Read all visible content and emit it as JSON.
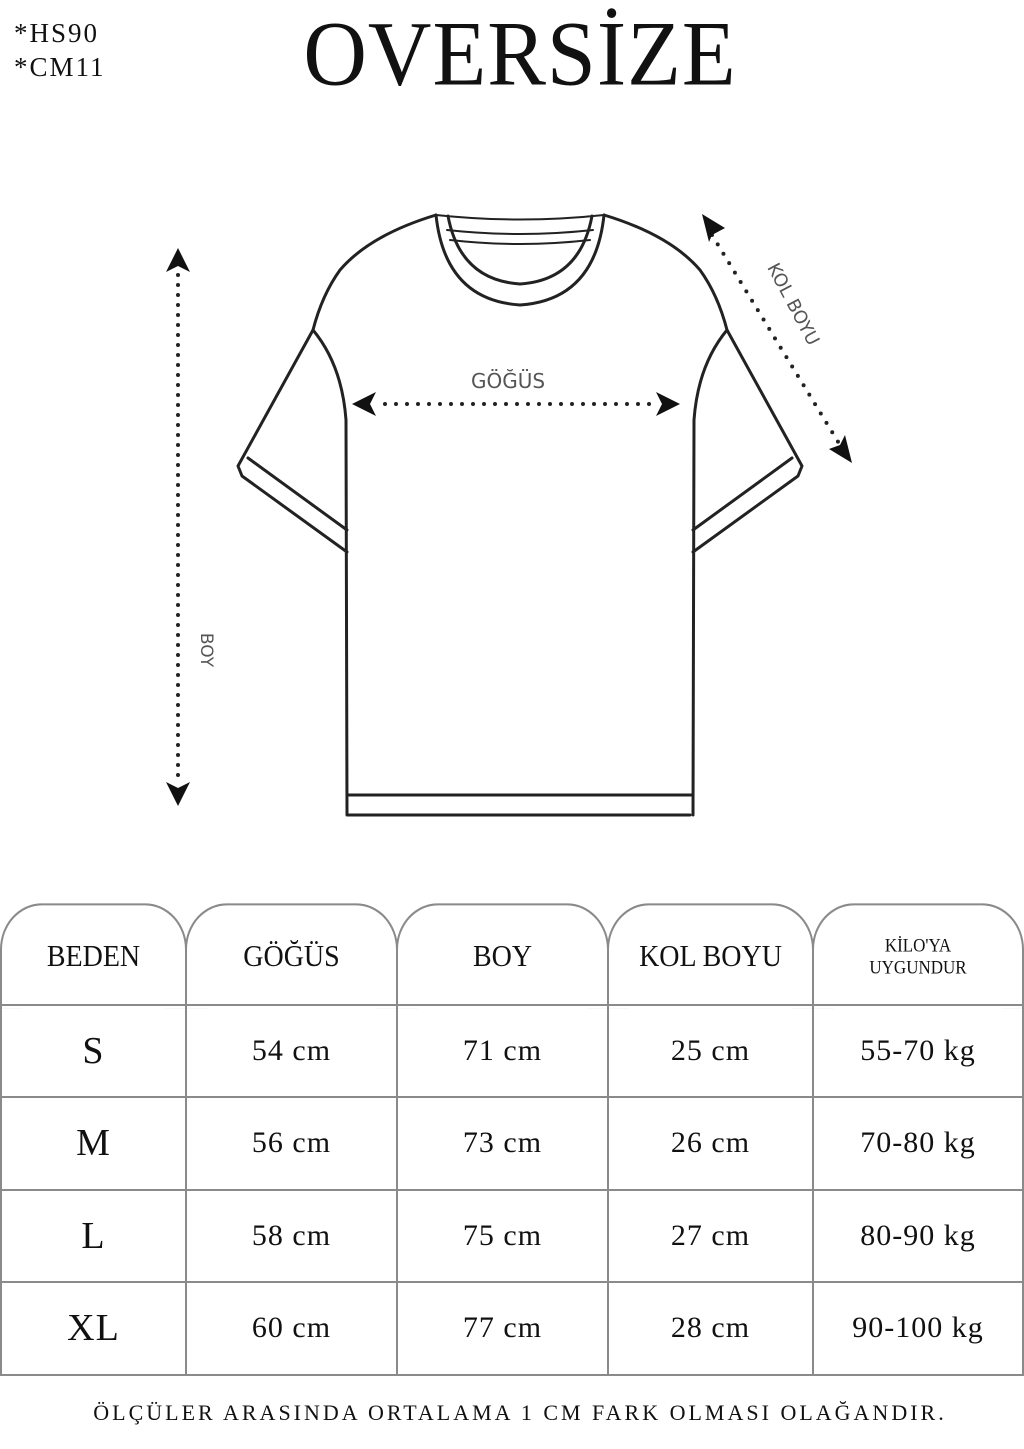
{
  "codes": [
    "*HS90",
    "*CM11"
  ],
  "title": "OVERSİZE",
  "diagram": {
    "chest_label": "GÖĞÜS",
    "length_label": "BOY",
    "sleeve_label": "KOL BOYU"
  },
  "table": {
    "headers": [
      "BEDEN",
      "GÖĞÜS",
      "BOY",
      "KOL BOYU",
      "KİLO'YA UYGUNDUR"
    ],
    "header_weight_lines": [
      "KİLO'YA",
      "UYGUNDUR"
    ],
    "rows": [
      [
        "S",
        "54 cm",
        "71 cm",
        "25  cm",
        "55-70 kg"
      ],
      [
        "M",
        "56 cm",
        "73 cm",
        "26 cm",
        "70-80 kg"
      ],
      [
        "L",
        "58 cm",
        "75 cm",
        "27 cm",
        "80-90 kg"
      ],
      [
        "XL",
        "60 cm",
        "77 cm",
        "28 cm",
        "90-100 kg"
      ]
    ]
  },
  "footer": "ÖLÇÜLER ARASINDA ORTALAMA 1 CM FARK OLMASI OLAĞANDIR."
}
